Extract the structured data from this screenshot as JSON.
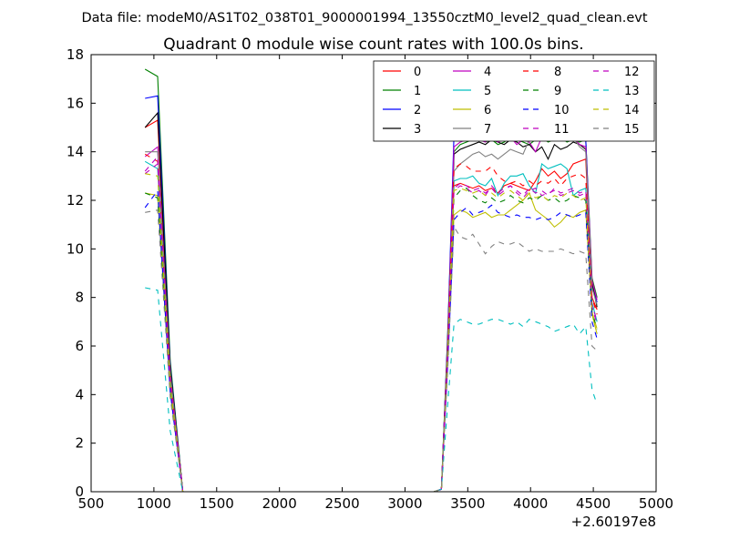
{
  "chart_data": {
    "type": "line",
    "suptitle": "Data file: modeM0/AS1T02_038T01_9000001994_13550cztM0_level2_quad_clean.evt",
    "title": "Quadrant 0 module wise count rates with 100.0s bins.",
    "xlabel": "",
    "ylabel": "",
    "x_offset_label": "+2.60197e8",
    "xlim": [
      500,
      5000
    ],
    "ylim": [
      0,
      18
    ],
    "xticks": [
      500,
      1000,
      1500,
      2000,
      2500,
      3000,
      3500,
      4000,
      4500,
      5000
    ],
    "yticks": [
      0,
      2,
      4,
      6,
      8,
      10,
      12,
      14,
      16,
      18
    ],
    "legend_location": "top-right",
    "legend_columns": 4,
    "x": [
      930,
      1030,
      1130,
      1230,
      1330,
      1430,
      1530,
      1630,
      1730,
      1830,
      1930,
      2030,
      2130,
      2230,
      2330,
      2430,
      2530,
      2630,
      2730,
      2830,
      2930,
      3030,
      3130,
      3230,
      3290,
      3340,
      3390,
      3440,
      3490,
      3540,
      3590,
      3640,
      3690,
      3740,
      3790,
      3840,
      3890,
      3940,
      3990,
      4040,
      4090,
      4140,
      4190,
      4240,
      4290,
      4340,
      4390,
      4440,
      4490,
      4530
    ],
    "series": [
      {
        "name": "0",
        "color": "#ff0000",
        "dash": "solid",
        "values": [
          15.0,
          15.3,
          5.0,
          0,
          0,
          0,
          0,
          0,
          0,
          0,
          0,
          0,
          0,
          0,
          0,
          0,
          0,
          0,
          0,
          0,
          0,
          0,
          0,
          0,
          0.1,
          6.0,
          12.6,
          12.7,
          12.6,
          12.5,
          12.6,
          12.4,
          12.5,
          12.3,
          12.6,
          12.7,
          12.6,
          12.5,
          12.4,
          12.8,
          13.3,
          13.0,
          13.2,
          12.9,
          13.1,
          13.5,
          13.6,
          13.7,
          8.0,
          7.5
        ]
      },
      {
        "name": "1",
        "color": "#008000",
        "dash": "solid",
        "values": [
          17.4,
          17.1,
          5.4,
          0,
          0,
          0,
          0,
          0,
          0,
          0,
          0,
          0,
          0,
          0,
          0,
          0,
          0,
          0,
          0,
          0,
          0,
          0,
          0,
          0,
          0.1,
          6.5,
          14.0,
          14.3,
          14.4,
          14.5,
          14.6,
          14.4,
          14.5,
          14.3,
          14.4,
          14.6,
          14.5,
          14.4,
          14.3,
          14.5,
          14.6,
          14.4,
          14.5,
          14.6,
          14.4,
          14.5,
          14.4,
          14.5,
          8.8,
          8.0
        ]
      },
      {
        "name": "2",
        "color": "#0000ff",
        "dash": "solid",
        "values": [
          16.2,
          16.3,
          5.2,
          0,
          0,
          0,
          0,
          0,
          0,
          0,
          0,
          0,
          0,
          0,
          0,
          0,
          0,
          0,
          0,
          0,
          0,
          0,
          0,
          0,
          0.1,
          6.4,
          14.7,
          15.0,
          15.0,
          15.1,
          15.2,
          15.0,
          15.0,
          14.9,
          15.1,
          15.2,
          15.0,
          14.8,
          14.9,
          15.0,
          15.1,
          15.0,
          14.9,
          15.0,
          14.8,
          14.9,
          14.7,
          14.5,
          8.5,
          7.8
        ]
      },
      {
        "name": "3",
        "color": "#000000",
        "dash": "solid",
        "values": [
          15.0,
          15.6,
          5.1,
          0,
          0,
          0,
          0,
          0,
          0,
          0,
          0,
          0,
          0,
          0,
          0,
          0,
          0,
          0,
          0,
          0,
          0,
          0,
          0,
          0,
          0.1,
          6.2,
          13.9,
          14.1,
          14.2,
          14.3,
          14.4,
          14.3,
          14.5,
          14.4,
          14.3,
          14.5,
          14.4,
          14.2,
          14.3,
          14.0,
          14.2,
          13.7,
          14.3,
          14.1,
          14.2,
          14.4,
          14.3,
          14.1,
          8.6,
          7.6
        ]
      },
      {
        "name": "4",
        "color": "#bf00bf",
        "dash": "solid",
        "values": [
          13.8,
          14.2,
          4.8,
          0,
          0,
          0,
          0,
          0,
          0,
          0,
          0,
          0,
          0,
          0,
          0,
          0,
          0,
          0,
          0,
          0,
          0,
          0,
          0,
          0,
          0.1,
          6.1,
          14.2,
          14.4,
          14.5,
          14.6,
          14.5,
          14.4,
          14.6,
          14.4,
          14.5,
          14.6,
          14.3,
          14.5,
          14.4,
          14.0,
          14.6,
          14.5,
          14.9,
          15.2,
          14.8,
          14.6,
          14.3,
          14.2,
          8.7,
          7.9
        ]
      },
      {
        "name": "5",
        "color": "#00bfbf",
        "dash": "solid",
        "values": [
          13.6,
          13.3,
          4.6,
          0,
          0,
          0,
          0,
          0,
          0,
          0,
          0,
          0,
          0,
          0,
          0,
          0,
          0,
          0,
          0,
          0,
          0,
          0,
          0,
          0,
          0.1,
          5.8,
          12.8,
          12.9,
          12.9,
          13.0,
          12.7,
          12.6,
          12.9,
          12.2,
          12.7,
          13.0,
          13.0,
          13.1,
          12.6,
          12.3,
          13.5,
          13.3,
          13.4,
          13.5,
          13.3,
          12.2,
          12.4,
          12.5,
          7.8,
          7.0
        ]
      },
      {
        "name": "6",
        "color": "#bfbf00",
        "dash": "solid",
        "values": [
          12.3,
          12.2,
          4.2,
          0,
          0,
          0,
          0,
          0,
          0,
          0,
          0,
          0,
          0,
          0,
          0,
          0,
          0,
          0,
          0,
          0,
          0,
          0,
          0,
          0,
          0.1,
          5.4,
          11.4,
          11.6,
          11.5,
          11.3,
          11.4,
          11.5,
          11.3,
          11.4,
          11.4,
          11.6,
          11.8,
          12.0,
          12.3,
          11.6,
          11.4,
          11.2,
          10.9,
          11.1,
          11.4,
          11.3,
          11.5,
          11.6,
          7.3,
          6.5
        ]
      },
      {
        "name": "7",
        "color": "#808080",
        "dash": "solid",
        "values": [
          14.0,
          14.0,
          4.9,
          0,
          0,
          0,
          0,
          0,
          0,
          0,
          0,
          0,
          0,
          0,
          0,
          0,
          0,
          0,
          0,
          0,
          0,
          0,
          0,
          0,
          0.1,
          6.0,
          13.2,
          13.5,
          13.7,
          13.9,
          14.0,
          13.8,
          13.9,
          13.7,
          13.9,
          14.1,
          14.0,
          13.9,
          14.5,
          14.9,
          14.7,
          14.6,
          14.8,
          14.9,
          14.7,
          14.6,
          14.2,
          14.0,
          8.4,
          7.7
        ]
      },
      {
        "name": "8",
        "color": "#ff0000",
        "dash": "dashed",
        "values": [
          13.9,
          13.6,
          4.7,
          0,
          0,
          0,
          0,
          0,
          0,
          0,
          0,
          0,
          0,
          0,
          0,
          0,
          0,
          0,
          0,
          0,
          0,
          0,
          0,
          0,
          0.1,
          5.9,
          13.3,
          13.5,
          13.4,
          13.2,
          13.2,
          13.2,
          13.4,
          13.0,
          12.8,
          12.7,
          12.8,
          12.6,
          12.8,
          12.6,
          12.8,
          12.7,
          12.9,
          12.6,
          12.9,
          13.0,
          13.1,
          12.9,
          8.0,
          7.3
        ]
      },
      {
        "name": "9",
        "color": "#008000",
        "dash": "dashed",
        "values": [
          12.3,
          12.1,
          4.3,
          0,
          0,
          0,
          0,
          0,
          0,
          0,
          0,
          0,
          0,
          0,
          0,
          0,
          0,
          0,
          0,
          0,
          0,
          0,
          0,
          0,
          0.1,
          5.5,
          12.1,
          12.4,
          12.5,
          12.2,
          12.0,
          11.9,
          12.1,
          11.9,
          12.0,
          12.2,
          12.0,
          11.9,
          12.1,
          12.0,
          12.2,
          12.0,
          12.1,
          11.9,
          12.0,
          12.2,
          12.1,
          12.0,
          7.4,
          6.7
        ]
      },
      {
        "name": "10",
        "color": "#0000ff",
        "dash": "dashed",
        "values": [
          11.7,
          12.4,
          4.1,
          0,
          0,
          0,
          0,
          0,
          0,
          0,
          0,
          0,
          0,
          0,
          0,
          0,
          0,
          0,
          0,
          0,
          0,
          0,
          0,
          0,
          0.1,
          5.2,
          11.2,
          11.5,
          11.7,
          11.4,
          11.5,
          11.6,
          11.8,
          11.5,
          11.4,
          11.3,
          11.4,
          11.3,
          11.3,
          11.2,
          11.3,
          11.2,
          11.3,
          11.5,
          11.4,
          11.3,
          11.4,
          11.5,
          7.0,
          6.3
        ]
      },
      {
        "name": "11",
        "color": "#bf00bf",
        "dash": "dashed",
        "values": [
          13.2,
          13.8,
          4.6,
          0,
          0,
          0,
          0,
          0,
          0,
          0,
          0,
          0,
          0,
          0,
          0,
          0,
          0,
          0,
          0,
          0,
          0,
          0,
          0,
          0,
          0.1,
          5.7,
          12.4,
          12.6,
          12.5,
          12.3,
          12.4,
          12.2,
          12.6,
          12.3,
          12.5,
          12.6,
          12.3,
          12.1,
          12.4,
          12.5,
          12.2,
          12.3,
          12.4,
          12.2,
          12.3,
          12.4,
          12.2,
          12.3,
          7.6,
          6.9
        ]
      },
      {
        "name": "12",
        "color": "#bf00bf",
        "dash": "dashed",
        "values": [
          13.1,
          13.5,
          4.5,
          0,
          0,
          0,
          0,
          0,
          0,
          0,
          0,
          0,
          0,
          0,
          0,
          0,
          0,
          0,
          0,
          0,
          0,
          0,
          0,
          0,
          0.1,
          5.6,
          12.5,
          12.7,
          12.6,
          12.4,
          12.5,
          12.3,
          12.5,
          12.2,
          12.4,
          12.6,
          12.4,
          12.2,
          12.5,
          12.3,
          12.4,
          12.2,
          12.5,
          12.3,
          12.4,
          12.5,
          12.3,
          12.4,
          7.7,
          7.0
        ]
      },
      {
        "name": "13",
        "color": "#00bfbf",
        "dash": "dashed",
        "values": [
          8.4,
          8.3,
          2.5,
          0,
          0,
          0,
          0,
          0,
          0,
          0,
          0,
          0,
          0,
          0,
          0,
          0,
          0,
          0,
          0,
          0,
          0,
          0,
          0,
          0,
          0.1,
          3.6,
          6.9,
          7.1,
          7.0,
          6.9,
          6.9,
          7.0,
          7.1,
          7.1,
          7.0,
          6.9,
          7.0,
          6.8,
          7.1,
          7.0,
          6.9,
          6.8,
          6.6,
          6.7,
          6.8,
          6.9,
          6.5,
          6.8,
          4.2,
          3.6
        ]
      },
      {
        "name": "14",
        "color": "#bfbf00",
        "dash": "dashed",
        "values": [
          13.1,
          13.0,
          4.4,
          0,
          0,
          0,
          0,
          0,
          0,
          0,
          0,
          0,
          0,
          0,
          0,
          0,
          0,
          0,
          0,
          0,
          0,
          0,
          0,
          0,
          0.1,
          5.6,
          12.4,
          12.5,
          12.4,
          12.3,
          12.4,
          12.2,
          12.3,
          12.1,
          12.3,
          12.4,
          12.2,
          12.0,
          12.3,
          12.1,
          12.2,
          12.0,
          12.2,
          12.1,
          12.3,
          12.2,
          12.0,
          12.1,
          7.4,
          6.7
        ]
      },
      {
        "name": "15",
        "color": "#808080",
        "dash": "dashed",
        "values": [
          11.5,
          11.6,
          3.9,
          0,
          0,
          0,
          0,
          0,
          0,
          0,
          0,
          0,
          0,
          0,
          0,
          0,
          0,
          0,
          0,
          0,
          0,
          0,
          0,
          0,
          0.1,
          5.0,
          10.9,
          10.5,
          10.4,
          10.6,
          10.2,
          9.8,
          10.1,
          10.3,
          10.2,
          10.2,
          10.3,
          10.1,
          9.9,
          10.0,
          9.9,
          9.9,
          9.9,
          10.0,
          9.9,
          9.8,
          9.9,
          9.8,
          6.0,
          5.8
        ]
      }
    ]
  }
}
